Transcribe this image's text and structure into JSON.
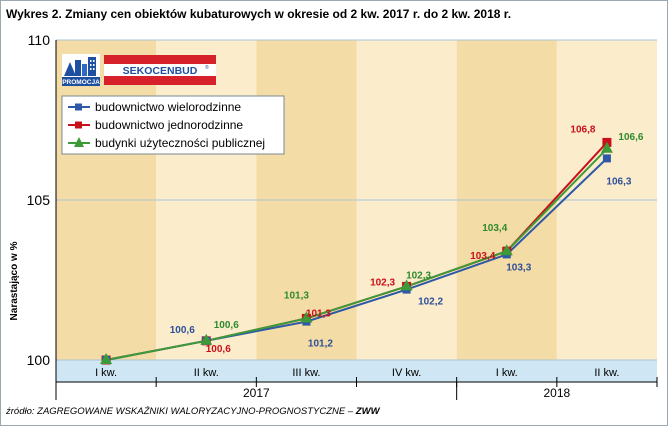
{
  "title": "Wykres 2.  Zmiany cen obiektów kubaturowych w okresie od 2 kw. 2017 r. do 2 kw. 2018 r.",
  "source": {
    "prefix": "źródło: ZAGREGOWANE WSKAŹNIKI WALORYZACYJNO-PROGNOSTYCZNE – ",
    "bold": "ZWW"
  },
  "logos": {
    "promocja": "PROMOCJA",
    "sekocenbud": "SEKOCENBUD"
  },
  "colors": {
    "band_dark": "#f3dca5",
    "band_light": "#fbeccb",
    "header_band": "#cfe7f4",
    "grid": "#a9c6d8",
    "series_1": "#2d59a7",
    "series_2": "#c8101a",
    "series_3": "#3c9a38",
    "label_1": "#2d4f9a",
    "label_2": "#c8101a",
    "label_3": "#2f8a2c"
  },
  "chart_data": {
    "type": "line",
    "title": "Wykres 2.  Zmiany cen obiektów kubaturowych w okresie od 2 kw. 2017 r. do 2 kw. 2018 r.",
    "ylabel": "Narastająco w %",
    "xlabel": "",
    "ylim": [
      100,
      110
    ],
    "yticks": [
      "100",
      "105",
      "110"
    ],
    "categories": [
      "I kw.",
      "II kw.",
      "III kw.",
      "IV kw.",
      "I kw.",
      "II kw."
    ],
    "years": [
      {
        "label": "2017",
        "from": 0,
        "to": 3
      },
      {
        "label": "2018",
        "from": 4,
        "to": 5
      }
    ],
    "point_x": [
      0.5,
      1.5,
      2.5,
      3.5,
      4.5,
      5.5
    ],
    "legend": [
      "budownictwo wielorodzinne",
      "budownictwo jednorodzinne",
      "budynki użyteczności publicznej"
    ],
    "legend_position": "top-left",
    "grid": true,
    "series": [
      {
        "name": "budownictwo wielorodzinne",
        "marker": "square",
        "values": [
          100.0,
          100.6,
          101.2,
          102.2,
          103.3,
          106.3
        ],
        "labels": [
          "",
          "100,6",
          "101,2",
          "102,2",
          "103,3",
          "106,3"
        ]
      },
      {
        "name": "budownictwo jednorodzinne",
        "marker": "rect",
        "values": [
          100.0,
          100.6,
          101.3,
          102.3,
          103.4,
          106.8
        ],
        "labels": [
          "",
          "100,6",
          "101,3",
          "102,3",
          "103,4",
          "106,8"
        ]
      },
      {
        "name": "budynki użyteczności publicznej",
        "marker": "triangle",
        "values": [
          100.0,
          100.6,
          101.3,
          102.3,
          103.4,
          106.6
        ],
        "labels": [
          "",
          "100,6",
          "101,3",
          "102,3",
          "103,4",
          "106,6"
        ]
      }
    ]
  }
}
